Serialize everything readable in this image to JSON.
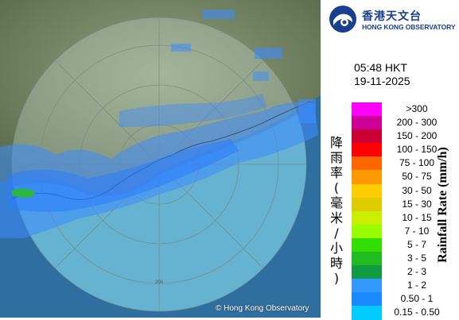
{
  "header": {
    "logo_chinese": "香港天文台",
    "logo_english": "HONG KONG OBSERVATORY"
  },
  "timestamp": {
    "time": "05:48 HKT",
    "date": "19-11-2025"
  },
  "map": {
    "copyright": "© Hong Kong Observatory",
    "range_ring_label": "200"
  },
  "legend": {
    "title_chinese": "降雨率(毫米/小時)",
    "title_english": "Rainfall Rate (mm/h)",
    "items": [
      {
        "label": ">300",
        "color": "#ff00ff"
      },
      {
        "label": "200 - 300",
        "color": "#cc0099"
      },
      {
        "label": "150 - 200",
        "color": "#cc0033"
      },
      {
        "label": "100 - 150",
        "color": "#ff0000"
      },
      {
        "label": "75 - 100",
        "color": "#ff6600"
      },
      {
        "label": "50 - 75",
        "color": "#ff9900"
      },
      {
        "label": "30 - 50",
        "color": "#ffcc00"
      },
      {
        "label": "15 - 30",
        "color": "#ddcc00"
      },
      {
        "label": "10 - 15",
        "color": "#ccee00"
      },
      {
        "label": "7 - 10",
        "color": "#99ff00"
      },
      {
        "label": "5 - 7",
        "color": "#33dd00"
      },
      {
        "label": "3 - 5",
        "color": "#22bb22"
      },
      {
        "label": "2 - 3",
        "color": "#119944"
      },
      {
        "label": "1 - 2",
        "color": "#3399ff"
      },
      {
        "label": "0.50 - 1",
        "color": "#1a88ff"
      },
      {
        "label": "0.15 - 0.50",
        "color": "#00ccff"
      }
    ]
  }
}
